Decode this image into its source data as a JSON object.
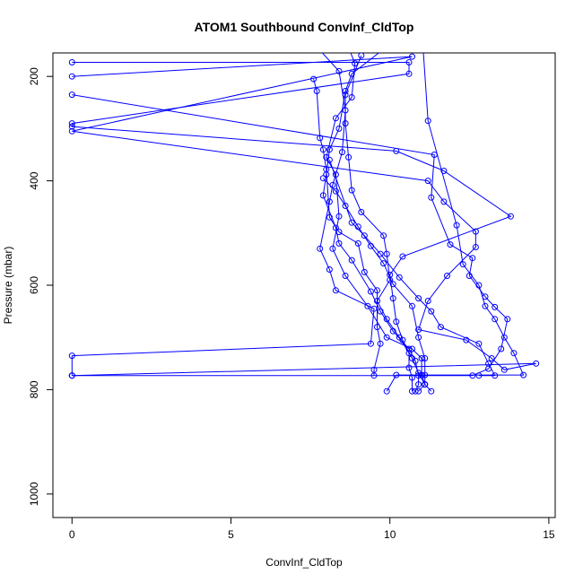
{
  "chart_data": {
    "type": "scatter",
    "title": "ATOM1 Southbound ConvInf_CldTop",
    "xlabel": "ConvInf_CldTop",
    "ylabel": "Pressure (mbar)",
    "xlim": [
      -0.6,
      15.2
    ],
    "ylim": [
      1045,
      155
    ],
    "y_inverted": true,
    "x_ticks": [
      0,
      5,
      10,
      15
    ],
    "y_ticks": [
      200,
      400,
      600,
      800,
      1000
    ],
    "x_tick_labels": [
      "0",
      "5",
      "10",
      "15"
    ],
    "y_tick_labels": [
      "200",
      "400",
      "600",
      "800",
      "1000"
    ],
    "grid": false,
    "legend": "none",
    "colors": {
      "series": "#0000ff",
      "axis": "#000000",
      "background": "#ffffff"
    },
    "series": [
      {
        "style": "line+open-circle",
        "points": [
          [
            0,
            173
          ],
          [
            10.6,
            173
          ],
          [
            10.6,
            195
          ],
          [
            0,
            290
          ],
          [
            0,
            296
          ],
          [
            10.2,
            343
          ],
          [
            11.7,
            381
          ],
          [
            13.8,
            468
          ],
          [
            10.4,
            545
          ],
          [
            10.0,
            580
          ],
          [
            10.1,
            625
          ],
          [
            10.2,
            670
          ],
          [
            10.4,
            705
          ],
          [
            10.7,
            740
          ],
          [
            10.9,
            768
          ],
          [
            11.1,
            790
          ],
          [
            11.3,
            803
          ]
        ]
      },
      {
        "style": "line+open-circle",
        "points": [
          [
            0,
            235
          ],
          [
            11.4,
            350
          ],
          [
            11.3,
            432
          ],
          [
            11.9,
            522
          ],
          [
            12.6,
            548
          ],
          [
            12.5,
            582
          ],
          [
            13.0,
            622
          ],
          [
            13.3,
            642
          ],
          [
            13.7,
            665
          ],
          [
            13.5,
            722
          ],
          [
            13.1,
            760
          ],
          [
            12.6,
            773
          ],
          [
            0,
            773
          ]
        ]
      },
      {
        "style": "line+open-circle",
        "points": [
          [
            0,
            200
          ],
          [
            10.7,
            162
          ],
          [
            0,
            305
          ],
          [
            11.2,
            400
          ],
          [
            11.7,
            440
          ],
          [
            12.7,
            497
          ],
          [
            12.7,
            527
          ],
          [
            11.8,
            582
          ],
          [
            11.2,
            630
          ],
          [
            10.9,
            685
          ],
          [
            12.4,
            705
          ],
          [
            13.2,
            740
          ],
          [
            13.6,
            762
          ],
          [
            14.6,
            750
          ],
          [
            0,
            773
          ]
        ]
      },
      {
        "style": "line+open-circle",
        "points": [
          [
            7.2,
            110
          ],
          [
            8.4,
            190
          ],
          [
            8.6,
            265
          ],
          [
            8.5,
            345
          ],
          [
            8.2,
            408
          ],
          [
            8.1,
            440
          ],
          [
            7.8,
            530
          ],
          [
            8.1,
            570
          ],
          [
            8.3,
            610
          ],
          [
            9.5,
            645
          ],
          [
            9.4,
            712
          ],
          [
            0,
            735
          ],
          [
            0,
            773
          ]
        ]
      },
      {
        "style": "line+open-circle",
        "points": [
          [
            8.6,
            130
          ],
          [
            8.9,
            175
          ],
          [
            8.8,
            240
          ],
          [
            8.3,
            280
          ],
          [
            8.0,
            355
          ],
          [
            8.3,
            388
          ],
          [
            8.4,
            468
          ],
          [
            8.2,
            530
          ],
          [
            8.6,
            582
          ],
          [
            9.3,
            640
          ],
          [
            9.9,
            700
          ],
          [
            10.7,
            722
          ],
          [
            11.0,
            740
          ],
          [
            11.0,
            772
          ],
          [
            11.1,
            790
          ]
        ]
      },
      {
        "style": "line+open-circle",
        "points": [
          [
            9.1,
            160
          ],
          [
            8.6,
            235
          ],
          [
            8.6,
            290
          ],
          [
            8.7,
            355
          ],
          [
            8.8,
            418
          ],
          [
            9.1,
            460
          ],
          [
            9.8,
            505
          ],
          [
            9.9,
            540
          ],
          [
            10.0,
            590
          ],
          [
            9.6,
            630
          ],
          [
            9.9,
            665
          ],
          [
            10.3,
            700
          ],
          [
            10.6,
            730
          ],
          [
            10.6,
            758
          ],
          [
            10.7,
            777
          ],
          [
            10.7,
            803
          ]
        ]
      },
      {
        "style": "line+open-circle",
        "points": [
          [
            7.6,
            205
          ],
          [
            7.7,
            228
          ],
          [
            7.8,
            318
          ],
          [
            7.9,
            340
          ],
          [
            8.0,
            378
          ],
          [
            8.1,
            470
          ],
          [
            8.4,
            498
          ],
          [
            9.0,
            520
          ],
          [
            9.2,
            575
          ],
          [
            9.6,
            610
          ],
          [
            9.6,
            680
          ],
          [
            9.7,
            712
          ],
          [
            9.5,
            762
          ],
          [
            9.5,
            773
          ]
        ]
      },
      {
        "style": "line+open-circle",
        "points": [
          [
            9.8,
            148
          ],
          [
            8.8,
            195
          ],
          [
            8.6,
            228
          ],
          [
            8.4,
            300
          ],
          [
            8.1,
            340
          ],
          [
            8.0,
            388
          ],
          [
            7.9,
            428
          ],
          [
            8.3,
            490
          ],
          [
            8.4,
            520
          ],
          [
            8.8,
            552
          ],
          [
            9.4,
            612
          ],
          [
            9.7,
            650
          ],
          [
            10.1,
            688
          ],
          [
            10.6,
            722
          ],
          [
            10.8,
            745
          ],
          [
            10.9,
            773
          ],
          [
            10.9,
            790
          ],
          [
            10.8,
            803
          ]
        ]
      },
      {
        "style": "line+open-circle",
        "points": [
          [
            11.0,
            105
          ],
          [
            11.2,
            285
          ],
          [
            12.1,
            485
          ],
          [
            12.3,
            560
          ],
          [
            12.8,
            600
          ],
          [
            13.0,
            640
          ],
          [
            13.3,
            665
          ],
          [
            13.6,
            700
          ],
          [
            13.9,
            730
          ],
          [
            14.2,
            772
          ],
          [
            10.2,
            772
          ],
          [
            9.9,
            803
          ]
        ]
      },
      {
        "style": "line+open-circle",
        "points": [
          [
            8.1,
            360
          ],
          [
            8.8,
            480
          ],
          [
            9.2,
            505
          ],
          [
            9.7,
            540
          ],
          [
            10.3,
            585
          ],
          [
            10.9,
            625
          ],
          [
            11.3,
            650
          ],
          [
            11.6,
            680
          ],
          [
            12.8,
            712
          ],
          [
            13.1,
            750
          ],
          [
            13.3,
            773
          ],
          [
            12.8,
            773
          ]
        ]
      },
      {
        "style": "line+open-circle",
        "points": [
          [
            7.9,
            395
          ],
          [
            8.3,
            420
          ],
          [
            8.6,
            448
          ],
          [
            9.0,
            488
          ],
          [
            9.4,
            525
          ],
          [
            9.8,
            558
          ],
          [
            10.1,
            598
          ],
          [
            10.7,
            640
          ],
          [
            10.9,
            700
          ],
          [
            11.1,
            740
          ],
          [
            11.1,
            772
          ],
          [
            11.1,
            790
          ],
          [
            10.9,
            803
          ]
        ]
      }
    ]
  }
}
